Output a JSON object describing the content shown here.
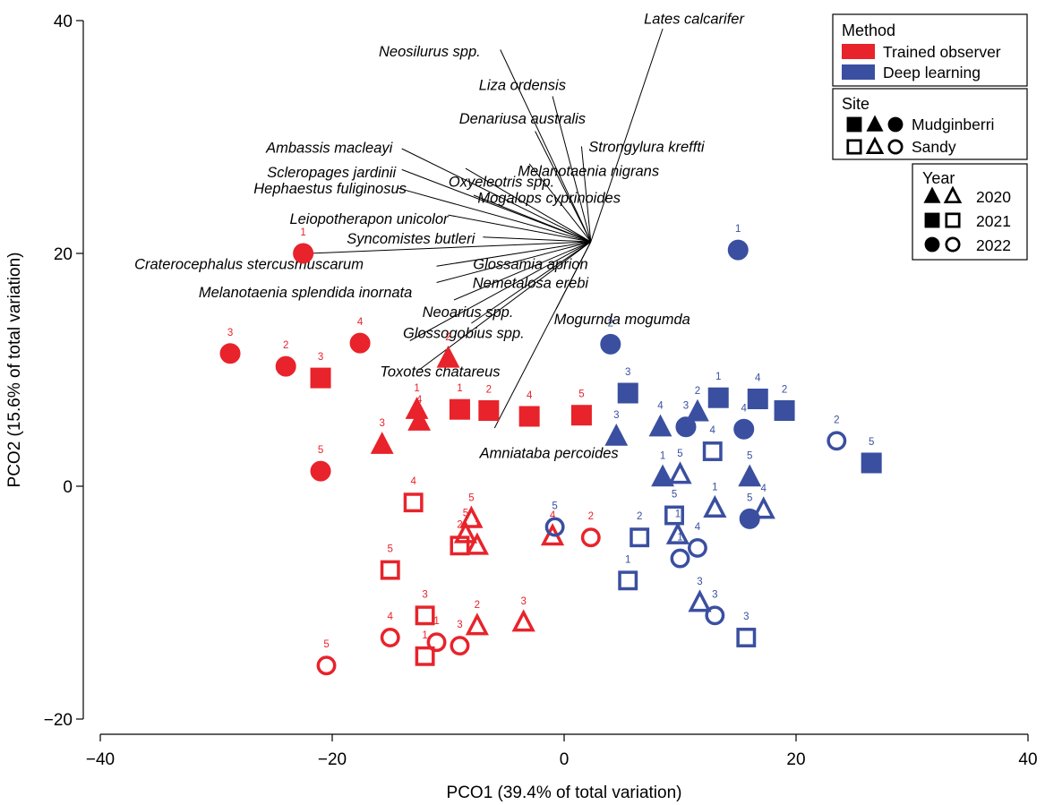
{
  "chart_data": {
    "type": "scatter",
    "subtype": "PCO biplot",
    "title": "",
    "xlabel": "PCO1 (39.4% of total variation)",
    "ylabel": "PCO2 (15.6% of total variation)",
    "xlim": [
      -40,
      40
    ],
    "ylim": [
      -20,
      40
    ],
    "xticks": [
      -40,
      -20,
      0,
      20,
      40
    ],
    "yticks": [
      -20,
      0,
      20,
      40
    ],
    "xtick_labels": [
      "−40",
      "−20",
      "0",
      "20",
      "40"
    ],
    "ytick_labels": [
      "−20",
      "0",
      "20",
      "40"
    ],
    "colors": {
      "Trained observer": "#e8232b",
      "Deep learning": "#3a4fa0"
    },
    "vector_origin": [
      2.3,
      21
    ],
    "vectors": [
      {
        "name": "Lates calcarifer",
        "end": [
          8.5,
          39.3
        ],
        "label_at": [
          11.2,
          40.2
        ],
        "anchor": "middle"
      },
      {
        "name": "Neosilurus spp.",
        "end": [
          -5.5,
          37.5
        ],
        "label_at": [
          -7.2,
          37.4
        ],
        "anchor": "end"
      },
      {
        "name": "Liza ordensis",
        "end": [
          -1,
          33.5
        ],
        "label_at": [
          -3.6,
          34.5
        ],
        "anchor": "middle"
      },
      {
        "name": "Denariusa australis",
        "end": [
          -2.5,
          30.5
        ],
        "label_at": [
          -3.6,
          31.6
        ],
        "anchor": "middle"
      },
      {
        "name": "Ambassis macleayi",
        "end": [
          -14,
          29
        ],
        "label_at": [
          -14.8,
          29.1
        ],
        "anchor": "end"
      },
      {
        "name": "Strongylura kreffti",
        "end": [
          1.5,
          29.2
        ],
        "label_at": [
          7.1,
          29.2
        ],
        "anchor": "middle"
      },
      {
        "name": "Melanotaenia nigrans",
        "end": [
          -3,
          27.7
        ],
        "label_at": [
          2.1,
          27.1
        ],
        "anchor": "middle"
      },
      {
        "name": "Scleropages jardinii",
        "end": [
          -14,
          27.2
        ],
        "label_at": [
          -14.5,
          27.0
        ],
        "anchor": "end"
      },
      {
        "name": "Oxyeleotris spp.",
        "end": [
          -8.5,
          27.3
        ],
        "label_at": [
          -5.4,
          26.2
        ],
        "anchor": "middle"
      },
      {
        "name": "Hephaestus fuliginosus",
        "end": [
          -14.3,
          25.6
        ],
        "label_at": [
          -13.6,
          25.6
        ],
        "anchor": "end"
      },
      {
        "name": "Mogalops cyprinoides",
        "end": [
          -7.8,
          25
        ],
        "label_at": [
          -1.3,
          24.8
        ],
        "anchor": "middle"
      },
      {
        "name": "Leiopotherapon unicolor",
        "end": [
          -10,
          23.3
        ],
        "label_at": [
          -10.0,
          23.0
        ],
        "anchor": "end"
      },
      {
        "name": "Syncomistes butleri",
        "end": [
          -7,
          21.4
        ],
        "label_at": [
          -7.7,
          21.3
        ],
        "anchor": "end"
      },
      {
        "name": "Craterocephalus stercusmuscarum",
        "end": [
          -22,
          20
        ],
        "label_at": [
          -17.3,
          19.1
        ],
        "anchor": "end"
      },
      {
        "name": "Glossamia aprion",
        "end": [
          -11,
          18.9
        ],
        "label_at": [
          -2.9,
          19.1
        ],
        "anchor": "middle"
      },
      {
        "name": "Nemetalosa erebi",
        "end": [
          -11,
          17.5
        ],
        "label_at": [
          -2.9,
          17.5
        ],
        "anchor": "middle"
      },
      {
        "name": "Melanotaenia splendida inornata",
        "end": [
          -9.5,
          16
        ],
        "label_at": [
          -13.1,
          16.7
        ],
        "anchor": "end"
      },
      {
        "name": "Neoarius spp.",
        "end": [
          -8,
          14
        ],
        "label_at": [
          -8.3,
          15.0
        ],
        "anchor": "middle"
      },
      {
        "name": "Mogurnda mogumda",
        "end": [
          -0.7,
          15.2
        ],
        "label_at": [
          5.0,
          14.4
        ],
        "anchor": "middle"
      },
      {
        "name": "Glossogobius spp.",
        "end": [
          -13.3,
          12.5
        ],
        "label_at": [
          -13.9,
          13.2
        ],
        "anchor": "start"
      },
      {
        "name": "Toxotes chatareus",
        "end": [
          -12.5,
          10
        ],
        "label_at": [
          -10.7,
          9.9
        ],
        "anchor": "middle"
      },
      {
        "name": "Amniataba percoides",
        "end": [
          -6,
          5
        ],
        "label_at": [
          -1.3,
          2.9
        ],
        "anchor": "middle"
      }
    ],
    "series": [
      {
        "method": "Trained observer",
        "points": [
          {
            "site": "Mudginberri",
            "year": "2022",
            "x": -22.5,
            "y": 20.0,
            "label": "1"
          },
          {
            "site": "Mudginberri",
            "year": "2022",
            "x": -28.8,
            "y": 11.4,
            "label": "3"
          },
          {
            "site": "Mudginberri",
            "year": "2022",
            "x": -24.0,
            "y": 10.3,
            "label": "2"
          },
          {
            "site": "Mudginberri",
            "year": "2022",
            "x": -17.6,
            "y": 12.3,
            "label": "4"
          },
          {
            "site": "Mudginberri",
            "year": "2022",
            "x": -21.0,
            "y": 1.3,
            "label": "5"
          },
          {
            "site": "Mudginberri",
            "year": "2020",
            "x": -10.0,
            "y": 11.0,
            "label": "2"
          },
          {
            "site": "Mudginberri",
            "year": "2020",
            "x": -12.7,
            "y": 6.6,
            "label": "1"
          },
          {
            "site": "Mudginberri",
            "year": "2020",
            "x": -12.5,
            "y": 5.6,
            "label": "4"
          },
          {
            "site": "Mudginberri",
            "year": "2020",
            "x": -15.7,
            "y": 3.6,
            "label": "3"
          },
          {
            "site": "Mudginberri",
            "year": "2021",
            "x": -21.0,
            "y": 9.3,
            "label": "3"
          },
          {
            "site": "Mudginberri",
            "year": "2021",
            "x": -9.0,
            "y": 6.6,
            "label": "1"
          },
          {
            "site": "Mudginberri",
            "year": "2021",
            "x": -6.5,
            "y": 6.5,
            "label": "2"
          },
          {
            "site": "Mudginberri",
            "year": "2021",
            "x": -3.0,
            "y": 6.0,
            "label": "4"
          },
          {
            "site": "Mudginberri",
            "year": "2021",
            "x": 1.5,
            "y": 6.1,
            "label": "5"
          },
          {
            "site": "Sandy",
            "year": "2021",
            "x": -13.0,
            "y": -1.4,
            "label": "4"
          },
          {
            "site": "Sandy",
            "year": "2021",
            "x": -15.0,
            "y": -7.2,
            "label": "5"
          },
          {
            "site": "Sandy",
            "year": "2021",
            "x": -12.0,
            "y": -11.1,
            "label": "3"
          },
          {
            "site": "Sandy",
            "year": "2021",
            "x": -12.0,
            "y": -14.6,
            "label": "1"
          },
          {
            "site": "Sandy",
            "year": "2021",
            "x": -9.0,
            "y": -5.1,
            "label": "2"
          },
          {
            "site": "Sandy",
            "year": "2020",
            "x": -8.0,
            "y": -2.8,
            "label": "5"
          },
          {
            "site": "Sandy",
            "year": "2020",
            "x": -8.5,
            "y": -4.1,
            "label": "5"
          },
          {
            "site": "Sandy",
            "year": "2020",
            "x": -7.5,
            "y": -5.1,
            "label": "1"
          },
          {
            "site": "Sandy",
            "year": "2020",
            "x": -7.5,
            "y": -12.0,
            "label": "2"
          },
          {
            "site": "Sandy",
            "year": "2020",
            "x": -3.5,
            "y": -11.7,
            "label": "3"
          },
          {
            "site": "Sandy",
            "year": "2020",
            "x": -1.0,
            "y": -4.3,
            "label": "4"
          },
          {
            "site": "Sandy",
            "year": "2022",
            "x": 2.3,
            "y": -4.4,
            "label": "2"
          },
          {
            "site": "Sandy",
            "year": "2022",
            "x": -15.0,
            "y": -13.0,
            "label": "4"
          },
          {
            "site": "Sandy",
            "year": "2022",
            "x": -20.5,
            "y": -15.4,
            "label": "5"
          },
          {
            "site": "Sandy",
            "year": "2022",
            "x": -11.0,
            "y": -13.4,
            "label": "1"
          },
          {
            "site": "Sandy",
            "year": "2022",
            "x": -9.0,
            "y": -13.7,
            "label": "3"
          }
        ]
      },
      {
        "method": "Deep learning",
        "points": [
          {
            "site": "Mudginberri",
            "year": "2022",
            "x": 15.0,
            "y": 20.3,
            "label": "1"
          },
          {
            "site": "Mudginberri",
            "year": "2022",
            "x": 4.0,
            "y": 12.2,
            "label": "2"
          },
          {
            "site": "Mudginberri",
            "year": "2022",
            "x": 10.5,
            "y": 5.1,
            "label": "3"
          },
          {
            "site": "Mudginberri",
            "year": "2022",
            "x": 15.5,
            "y": 4.9,
            "label": "4"
          },
          {
            "site": "Mudginberri",
            "year": "2022",
            "x": 16.0,
            "y": -2.8,
            "label": "5"
          },
          {
            "site": "Mudginberri",
            "year": "2021",
            "x": 5.5,
            "y": 8.0,
            "label": "3"
          },
          {
            "site": "Mudginberri",
            "year": "2021",
            "x": 13.3,
            "y": 7.6,
            "label": "1"
          },
          {
            "site": "Mudginberri",
            "year": "2021",
            "x": 16.7,
            "y": 7.5,
            "label": "4"
          },
          {
            "site": "Mudginberri",
            "year": "2021",
            "x": 19.0,
            "y": 6.5,
            "label": "2"
          },
          {
            "site": "Mudginberri",
            "year": "2021",
            "x": 26.5,
            "y": 2.0,
            "label": "5"
          },
          {
            "site": "Mudginberri",
            "year": "2020",
            "x": 4.5,
            "y": 4.3,
            "label": "3"
          },
          {
            "site": "Mudginberri",
            "year": "2020",
            "x": 8.3,
            "y": 5.1,
            "label": "4"
          },
          {
            "site": "Mudginberri",
            "year": "2020",
            "x": 11.5,
            "y": 6.4,
            "label": "2"
          },
          {
            "site": "Mudginberri",
            "year": "2020",
            "x": 8.5,
            "y": 0.8,
            "label": "1"
          },
          {
            "site": "Mudginberri",
            "year": "2020",
            "x": 16.0,
            "y": 0.8,
            "label": "5"
          },
          {
            "site": "Sandy",
            "year": "2022",
            "x": 23.5,
            "y": 3.9,
            "label": "2"
          },
          {
            "site": "Sandy",
            "year": "2022",
            "x": -0.8,
            "y": -3.5,
            "label": "5"
          },
          {
            "site": "Sandy",
            "year": "2022",
            "x": 11.5,
            "y": -5.3,
            "label": "4"
          },
          {
            "site": "Sandy",
            "year": "2022",
            "x": 10.0,
            "y": -6.2,
            "label": "1"
          },
          {
            "site": "Sandy",
            "year": "2022",
            "x": 13.0,
            "y": -11.1,
            "label": "3"
          },
          {
            "site": "Sandy",
            "year": "2021",
            "x": 12.8,
            "y": 3.0,
            "label": "4"
          },
          {
            "site": "Sandy",
            "year": "2021",
            "x": 9.5,
            "y": -2.5,
            "label": "5"
          },
          {
            "site": "Sandy",
            "year": "2021",
            "x": 6.5,
            "y": -4.4,
            "label": "2"
          },
          {
            "site": "Sandy",
            "year": "2021",
            "x": 5.5,
            "y": -8.1,
            "label": "1"
          },
          {
            "site": "Sandy",
            "year": "2021",
            "x": 15.7,
            "y": -13.0,
            "label": "3"
          },
          {
            "site": "Sandy",
            "year": "2020",
            "x": 10.0,
            "y": 1.0,
            "label": "5"
          },
          {
            "site": "Sandy",
            "year": "2020",
            "x": 13.0,
            "y": -1.9,
            "label": "1"
          },
          {
            "site": "Sandy",
            "year": "2020",
            "x": 17.2,
            "y": -2.0,
            "label": "4"
          },
          {
            "site": "Sandy",
            "year": "2020",
            "x": 9.8,
            "y": -4.2,
            "label": "1"
          },
          {
            "site": "Sandy",
            "year": "2020",
            "x": 11.7,
            "y": -10.0,
            "label": "3"
          }
        ]
      }
    ],
    "legend": {
      "method": {
        "title": "Method",
        "entries": [
          "Trained observer",
          "Deep learning"
        ]
      },
      "site": {
        "title": "Site",
        "entries": [
          "Mudginberri",
          "Sandy"
        ]
      },
      "year": {
        "title": "Year",
        "entries": [
          "2020",
          "2021",
          "2022"
        ]
      },
      "placement": "top-right"
    }
  }
}
